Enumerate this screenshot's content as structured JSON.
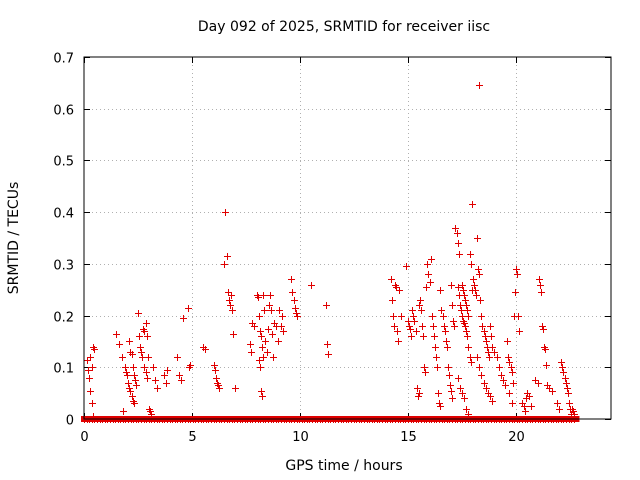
{
  "chart_data": {
    "type": "scatter",
    "title": "Day 092 of 2025, SRMTID for receiver iisc",
    "xlabel": "GPS time / hours",
    "ylabel": "SRMTID / TECUs",
    "xlim": [
      0,
      24.4
    ],
    "ylim": [
      0,
      0.7
    ],
    "x_ticks": [
      0,
      5,
      10,
      15,
      20
    ],
    "y_ticks": [
      0,
      0.1,
      0.2,
      0.3,
      0.4,
      0.5,
      0.6,
      0.7
    ],
    "x_tick_labels": [
      "0",
      "5",
      "10",
      "15",
      "20"
    ],
    "y_tick_labels": [
      "0",
      "0.1",
      "0.2",
      "0.3",
      "0.4",
      "0.5",
      "0.6",
      "0.7"
    ],
    "grid": true,
    "marker": "+",
    "marker_color": "#e00000",
    "zero_band": {
      "x_start": 0,
      "x_end": 22.8,
      "y": 0
    },
    "series": [
      {
        "name": "SRMTID",
        "points": [
          [
            0.15,
            0.115
          ],
          [
            0.2,
            0.095
          ],
          [
            0.25,
            0.08
          ],
          [
            0.3,
            0.12
          ],
          [
            0.35,
            0.1
          ],
          [
            0.4,
            0.14
          ],
          [
            0.45,
            0.135
          ],
          [
            0.3,
            0.055
          ],
          [
            0.35,
            0.03
          ],
          [
            0.4,
            0.005
          ],
          [
            1.5,
            0.165
          ],
          [
            1.6,
            0.145
          ],
          [
            1.75,
            0.12
          ],
          [
            1.8,
            0.015
          ],
          [
            1.9,
            0.1
          ],
          [
            1.95,
            0.09
          ],
          [
            2.0,
            0.085
          ],
          [
            2.05,
            0.07
          ],
          [
            2.1,
            0.06
          ],
          [
            2.15,
            0.055
          ],
          [
            2.2,
            0.045
          ],
          [
            2.25,
            0.035
          ],
          [
            2.3,
            0.03
          ],
          [
            2.1,
            0.15
          ],
          [
            2.15,
            0.13
          ],
          [
            2.2,
            0.125
          ],
          [
            2.25,
            0.1
          ],
          [
            2.3,
            0.085
          ],
          [
            2.35,
            0.075
          ],
          [
            2.4,
            0.065
          ],
          [
            2.5,
            0.205
          ],
          [
            2.55,
            0.16
          ],
          [
            2.6,
            0.14
          ],
          [
            2.65,
            0.13
          ],
          [
            2.7,
            0.12
          ],
          [
            2.75,
            0.175
          ],
          [
            2.8,
            0.17
          ],
          [
            2.85,
            0.185
          ],
          [
            2.9,
            0.16
          ],
          [
            2.8,
            0.1
          ],
          [
            2.85,
            0.09
          ],
          [
            2.9,
            0.08
          ],
          [
            2.95,
            0.12
          ],
          [
            3.0,
            0.02
          ],
          [
            3.05,
            0.015
          ],
          [
            3.1,
            0.01
          ],
          [
            3.2,
            0.1
          ],
          [
            3.3,
            0.075
          ],
          [
            3.4,
            0.06
          ],
          [
            3.7,
            0.085
          ],
          [
            3.8,
            0.07
          ],
          [
            3.85,
            0.095
          ],
          [
            4.3,
            0.12
          ],
          [
            4.4,
            0.085
          ],
          [
            4.5,
            0.075
          ],
          [
            4.6,
            0.195
          ],
          [
            4.8,
            0.215
          ],
          [
            4.85,
            0.1
          ],
          [
            4.9,
            0.105
          ],
          [
            5.5,
            0.14
          ],
          [
            5.6,
            0.135
          ],
          [
            6.0,
            0.105
          ],
          [
            6.05,
            0.095
          ],
          [
            6.1,
            0.08
          ],
          [
            6.15,
            0.07
          ],
          [
            6.2,
            0.065
          ],
          [
            6.25,
            0.06
          ],
          [
            6.5,
            0.3
          ],
          [
            6.55,
            0.4
          ],
          [
            6.6,
            0.315
          ],
          [
            6.65,
            0.245
          ],
          [
            6.7,
            0.23
          ],
          [
            6.75,
            0.22
          ],
          [
            6.8,
            0.24
          ],
          [
            6.85,
            0.21
          ],
          [
            6.9,
            0.165
          ],
          [
            7.0,
            0.06
          ],
          [
            7.7,
            0.145
          ],
          [
            7.75,
            0.13
          ],
          [
            7.8,
            0.185
          ],
          [
            7.85,
            0.18
          ],
          [
            8.0,
            0.24
          ],
          [
            8.05,
            0.235
          ],
          [
            8.1,
            0.2
          ],
          [
            8.15,
            0.17
          ],
          [
            8.2,
            0.16
          ],
          [
            8.25,
            0.14
          ],
          [
            8.3,
            0.12
          ],
          [
            8.1,
            0.115
          ],
          [
            8.15,
            0.1
          ],
          [
            8.2,
            0.055
          ],
          [
            8.25,
            0.045
          ],
          [
            8.3,
            0.24
          ],
          [
            8.35,
            0.21
          ],
          [
            8.4,
            0.15
          ],
          [
            8.45,
            0.13
          ],
          [
            8.5,
            0.175
          ],
          [
            8.55,
            0.22
          ],
          [
            8.6,
            0.24
          ],
          [
            8.65,
            0.21
          ],
          [
            8.7,
            0.165
          ],
          [
            8.75,
            0.12
          ],
          [
            8.8,
            0.185
          ],
          [
            8.9,
            0.18
          ],
          [
            9.0,
            0.15
          ],
          [
            9.05,
            0.21
          ],
          [
            9.1,
            0.18
          ],
          [
            9.15,
            0.2
          ],
          [
            9.2,
            0.17
          ],
          [
            9.6,
            0.27
          ],
          [
            9.65,
            0.245
          ],
          [
            9.7,
            0.23
          ],
          [
            9.75,
            0.215
          ],
          [
            9.8,
            0.205
          ],
          [
            9.85,
            0.2
          ],
          [
            10.5,
            0.26
          ],
          [
            11.2,
            0.22
          ],
          [
            11.25,
            0.145
          ],
          [
            11.3,
            0.125
          ],
          [
            14.2,
            0.27
          ],
          [
            14.25,
            0.23
          ],
          [
            14.3,
            0.2
          ],
          [
            14.35,
            0.18
          ],
          [
            14.4,
            0.26
          ],
          [
            14.45,
            0.255
          ],
          [
            14.5,
            0.17
          ],
          [
            14.55,
            0.15
          ],
          [
            14.6,
            0.25
          ],
          [
            14.7,
            0.2
          ],
          [
            14.9,
            0.295
          ],
          [
            15.0,
            0.19
          ],
          [
            15.05,
            0.18
          ],
          [
            15.1,
            0.175
          ],
          [
            15.15,
            0.16
          ],
          [
            15.2,
            0.21
          ],
          [
            15.25,
            0.2
          ],
          [
            15.3,
            0.19
          ],
          [
            15.35,
            0.17
          ],
          [
            15.4,
            0.06
          ],
          [
            15.45,
            0.045
          ],
          [
            15.5,
            0.05
          ],
          [
            15.5,
            0.22
          ],
          [
            15.55,
            0.23
          ],
          [
            15.6,
            0.21
          ],
          [
            15.65,
            0.18
          ],
          [
            15.7,
            0.16
          ],
          [
            15.75,
            0.1
          ],
          [
            15.8,
            0.09
          ],
          [
            15.85,
            0.255
          ],
          [
            15.9,
            0.3
          ],
          [
            15.95,
            0.28
          ],
          [
            16.0,
            0.265
          ],
          [
            16.05,
            0.31
          ],
          [
            16.1,
            0.2
          ],
          [
            16.15,
            0.18
          ],
          [
            16.2,
            0.16
          ],
          [
            16.25,
            0.14
          ],
          [
            16.3,
            0.12
          ],
          [
            16.35,
            0.1
          ],
          [
            16.4,
            0.05
          ],
          [
            16.45,
            0.03
          ],
          [
            16.5,
            0.025
          ],
          [
            16.5,
            0.25
          ],
          [
            16.55,
            0.21
          ],
          [
            16.6,
            0.2
          ],
          [
            16.65,
            0.18
          ],
          [
            16.7,
            0.17
          ],
          [
            16.75,
            0.15
          ],
          [
            16.8,
            0.14
          ],
          [
            16.85,
            0.1
          ],
          [
            16.9,
            0.085
          ],
          [
            16.95,
            0.065
          ],
          [
            17.0,
            0.055
          ],
          [
            17.05,
            0.04
          ],
          [
            17.0,
            0.26
          ],
          [
            17.05,
            0.22
          ],
          [
            17.1,
            0.19
          ],
          [
            17.15,
            0.18
          ],
          [
            17.2,
            0.37
          ],
          [
            17.25,
            0.36
          ],
          [
            17.3,
            0.34
          ],
          [
            17.35,
            0.32
          ],
          [
            17.3,
            0.255
          ],
          [
            17.35,
            0.24
          ],
          [
            17.4,
            0.22
          ],
          [
            17.45,
            0.21
          ],
          [
            17.5,
            0.2
          ],
          [
            17.55,
            0.19
          ],
          [
            17.6,
            0.185
          ],
          [
            17.65,
            0.18
          ],
          [
            17.7,
            0.17
          ],
          [
            17.75,
            0.16
          ],
          [
            17.8,
            0.14
          ],
          [
            17.85,
            0.12
          ],
          [
            17.9,
            0.11
          ],
          [
            17.3,
            0.08
          ],
          [
            17.4,
            0.06
          ],
          [
            17.5,
            0.05
          ],
          [
            17.6,
            0.04
          ],
          [
            17.7,
            0.02
          ],
          [
            17.8,
            0.01
          ],
          [
            17.5,
            0.26
          ],
          [
            17.55,
            0.25
          ],
          [
            17.6,
            0.24
          ],
          [
            17.65,
            0.23
          ],
          [
            17.7,
            0.22
          ],
          [
            17.75,
            0.21
          ],
          [
            17.8,
            0.2
          ],
          [
            17.85,
            0.32
          ],
          [
            17.9,
            0.3
          ],
          [
            17.95,
            0.25
          ],
          [
            18.0,
            0.27
          ],
          [
            18.05,
            0.26
          ],
          [
            18.1,
            0.25
          ],
          [
            18.15,
            0.24
          ],
          [
            17.95,
            0.415
          ],
          [
            18.2,
            0.35
          ],
          [
            18.3,
            0.645
          ],
          [
            18.25,
            0.29
          ],
          [
            18.3,
            0.28
          ],
          [
            18.35,
            0.23
          ],
          [
            18.4,
            0.2
          ],
          [
            18.45,
            0.18
          ],
          [
            18.5,
            0.17
          ],
          [
            18.55,
            0.16
          ],
          [
            18.6,
            0.15
          ],
          [
            18.65,
            0.14
          ],
          [
            18.7,
            0.13
          ],
          [
            18.75,
            0.12
          ],
          [
            18.2,
            0.12
          ],
          [
            18.3,
            0.1
          ],
          [
            18.4,
            0.085
          ],
          [
            18.5,
            0.07
          ],
          [
            18.6,
            0.06
          ],
          [
            18.7,
            0.05
          ],
          [
            18.8,
            0.045
          ],
          [
            18.9,
            0.035
          ],
          [
            18.8,
            0.18
          ],
          [
            18.85,
            0.16
          ],
          [
            18.9,
            0.14
          ],
          [
            19.0,
            0.13
          ],
          [
            19.1,
            0.12
          ],
          [
            19.2,
            0.1
          ],
          [
            19.3,
            0.085
          ],
          [
            19.4,
            0.075
          ],
          [
            19.5,
            0.065
          ],
          [
            19.6,
            0.15
          ],
          [
            19.65,
            0.12
          ],
          [
            19.7,
            0.11
          ],
          [
            19.75,
            0.1
          ],
          [
            19.8,
            0.09
          ],
          [
            19.85,
            0.07
          ],
          [
            19.9,
            0.2
          ],
          [
            19.95,
            0.245
          ],
          [
            20.0,
            0.29
          ],
          [
            20.05,
            0.28
          ],
          [
            20.1,
            0.2
          ],
          [
            20.15,
            0.17
          ],
          [
            19.7,
            0.05
          ],
          [
            19.8,
            0.03
          ],
          [
            20.3,
            0.03
          ],
          [
            20.35,
            0.025
          ],
          [
            20.4,
            0.015
          ],
          [
            20.45,
            0.04
          ],
          [
            20.5,
            0.05
          ],
          [
            20.6,
            0.045
          ],
          [
            20.7,
            0.025
          ],
          [
            20.9,
            0.075
          ],
          [
            21.0,
            0.07
          ],
          [
            21.05,
            0.27
          ],
          [
            21.1,
            0.26
          ],
          [
            21.15,
            0.245
          ],
          [
            21.2,
            0.18
          ],
          [
            21.25,
            0.175
          ],
          [
            21.3,
            0.14
          ],
          [
            21.35,
            0.135
          ],
          [
            21.4,
            0.105
          ],
          [
            21.45,
            0.065
          ],
          [
            21.55,
            0.06
          ],
          [
            21.65,
            0.055
          ],
          [
            21.9,
            0.03
          ],
          [
            22.0,
            0.02
          ],
          [
            22.1,
            0.11
          ],
          [
            22.15,
            0.1
          ],
          [
            22.2,
            0.09
          ],
          [
            22.25,
            0.08
          ],
          [
            22.3,
            0.07
          ],
          [
            22.35,
            0.06
          ],
          [
            22.4,
            0.05
          ],
          [
            22.45,
            0.03
          ],
          [
            22.5,
            0.02
          ],
          [
            22.55,
            0.01
          ],
          [
            22.6,
            0.02
          ],
          [
            22.65,
            0.015
          ],
          [
            22.7,
            0.01
          ]
        ]
      }
    ]
  }
}
